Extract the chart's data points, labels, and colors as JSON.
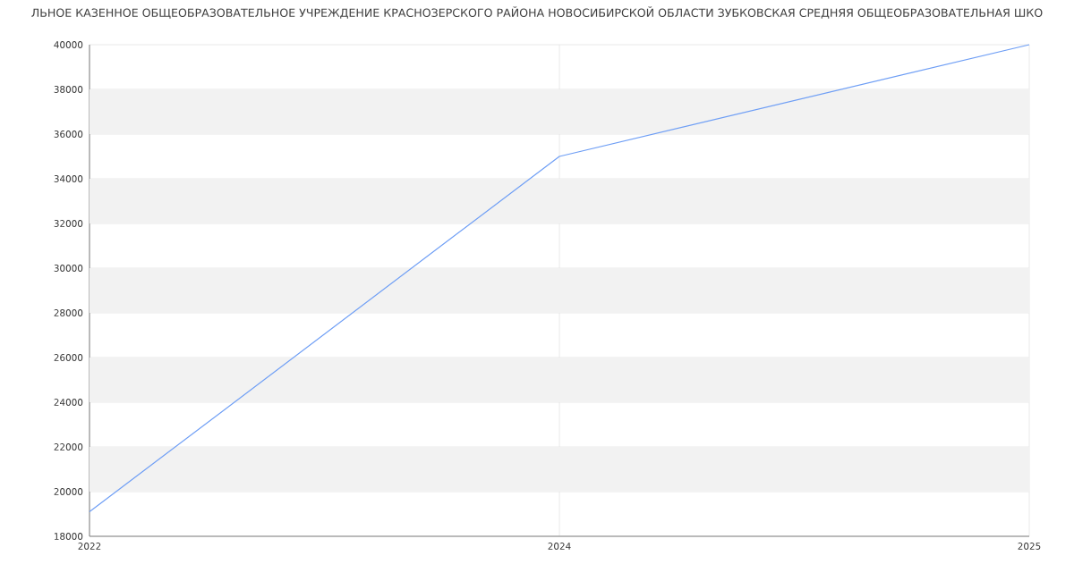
{
  "chart_data": {
    "type": "line",
    "title": "ЛЬНОЕ КАЗЕННОЕ ОБЩЕОБРАЗОВАТЕЛЬНОЕ УЧРЕЖДЕНИЕ КРАСНОЗЕРСКОГО РАЙОНА НОВОСИБИРСКОЙ ОБЛАСТИ ЗУБКОВСКАЯ СРЕДНЯЯ ОБЩЕОБРАЗОВАТЕЛЬНАЯ ШКО",
    "categories": [
      "2022",
      "2024",
      "2025"
    ],
    "values": [
      19100,
      35000,
      40000
    ],
    "color": "#6e9ef5",
    "ylim": [
      18000,
      40000
    ],
    "yticks": [
      18000,
      20000,
      22000,
      24000,
      26000,
      28000,
      30000,
      32000,
      34000,
      36000,
      38000,
      40000
    ],
    "grid": true,
    "marker": "none"
  }
}
